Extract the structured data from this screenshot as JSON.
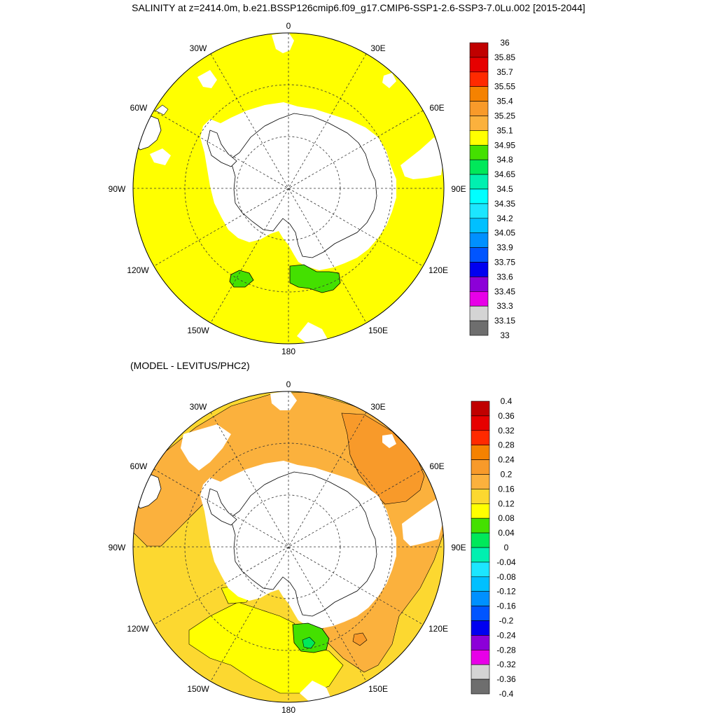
{
  "title": "SALINITY at z=2414.0m, b.e21.BSSP126cmip6.f09_g17.CMIP6-SSP1-2.6-SSP3-7.0Lu.002 [2015-2044]",
  "panels": [
    {
      "id": "top",
      "subtitle": "",
      "map_labels": [
        "0",
        "30E",
        "60E",
        "90E",
        "120E",
        "150E",
        "180",
        "150W",
        "120W",
        "90W",
        "60W",
        "30W"
      ],
      "dominant_fill": "#ffff00",
      "colorbar": {
        "labels": [
          "36",
          "35.85",
          "35.7",
          "35.55",
          "35.4",
          "35.25",
          "35.1",
          "34.95",
          "34.8",
          "34.65",
          "34.5",
          "34.35",
          "34.2",
          "34.05",
          "33.9",
          "33.75",
          "33.6",
          "33.45",
          "33.3",
          "33.15",
          "33"
        ],
        "colors": [
          "#c00000",
          "#e60000",
          "#ff2a00",
          "#f58200",
          "#f89a2a",
          "#fbb13d",
          "#ffff00",
          "#44e000",
          "#00e85a",
          "#00f0b0",
          "#00ffff",
          "#1ce6ff",
          "#00c0ff",
          "#0090ff",
          "#0055ff",
          "#0000f0",
          "#8c00d8",
          "#e800e8",
          "#d4d4d4",
          "#6e6e6e"
        ]
      }
    },
    {
      "id": "bottom",
      "subtitle": "(MODEL - LEVITUS/PHC2)",
      "map_labels": [
        "0",
        "30E",
        "60E",
        "90E",
        "120E",
        "150E",
        "180",
        "150W",
        "120W",
        "90W",
        "60W",
        "30W"
      ],
      "dominant_fill": "#fcd830",
      "colorbar": {
        "labels": [
          "0.4",
          "0.36",
          "0.32",
          "0.28",
          "0.24",
          "0.2",
          "0.16",
          "0.12",
          "0.08",
          "0.04",
          "0",
          "-0.04",
          "-0.08",
          "-0.12",
          "-0.16",
          "-0.2",
          "-0.24",
          "-0.28",
          "-0.32",
          "-0.36",
          "-0.4"
        ],
        "colors": [
          "#c00000",
          "#e60000",
          "#ff2a00",
          "#f58200",
          "#f89a2a",
          "#fbb13d",
          "#fcd830",
          "#ffff00",
          "#44e000",
          "#00e85a",
          "#00f0b0",
          "#1ce6ff",
          "#00c0ff",
          "#0090ff",
          "#0055ff",
          "#0000f0",
          "#8c00d8",
          "#e800e8",
          "#d4d4d4",
          "#6e6e6e"
        ]
      }
    }
  ]
}
